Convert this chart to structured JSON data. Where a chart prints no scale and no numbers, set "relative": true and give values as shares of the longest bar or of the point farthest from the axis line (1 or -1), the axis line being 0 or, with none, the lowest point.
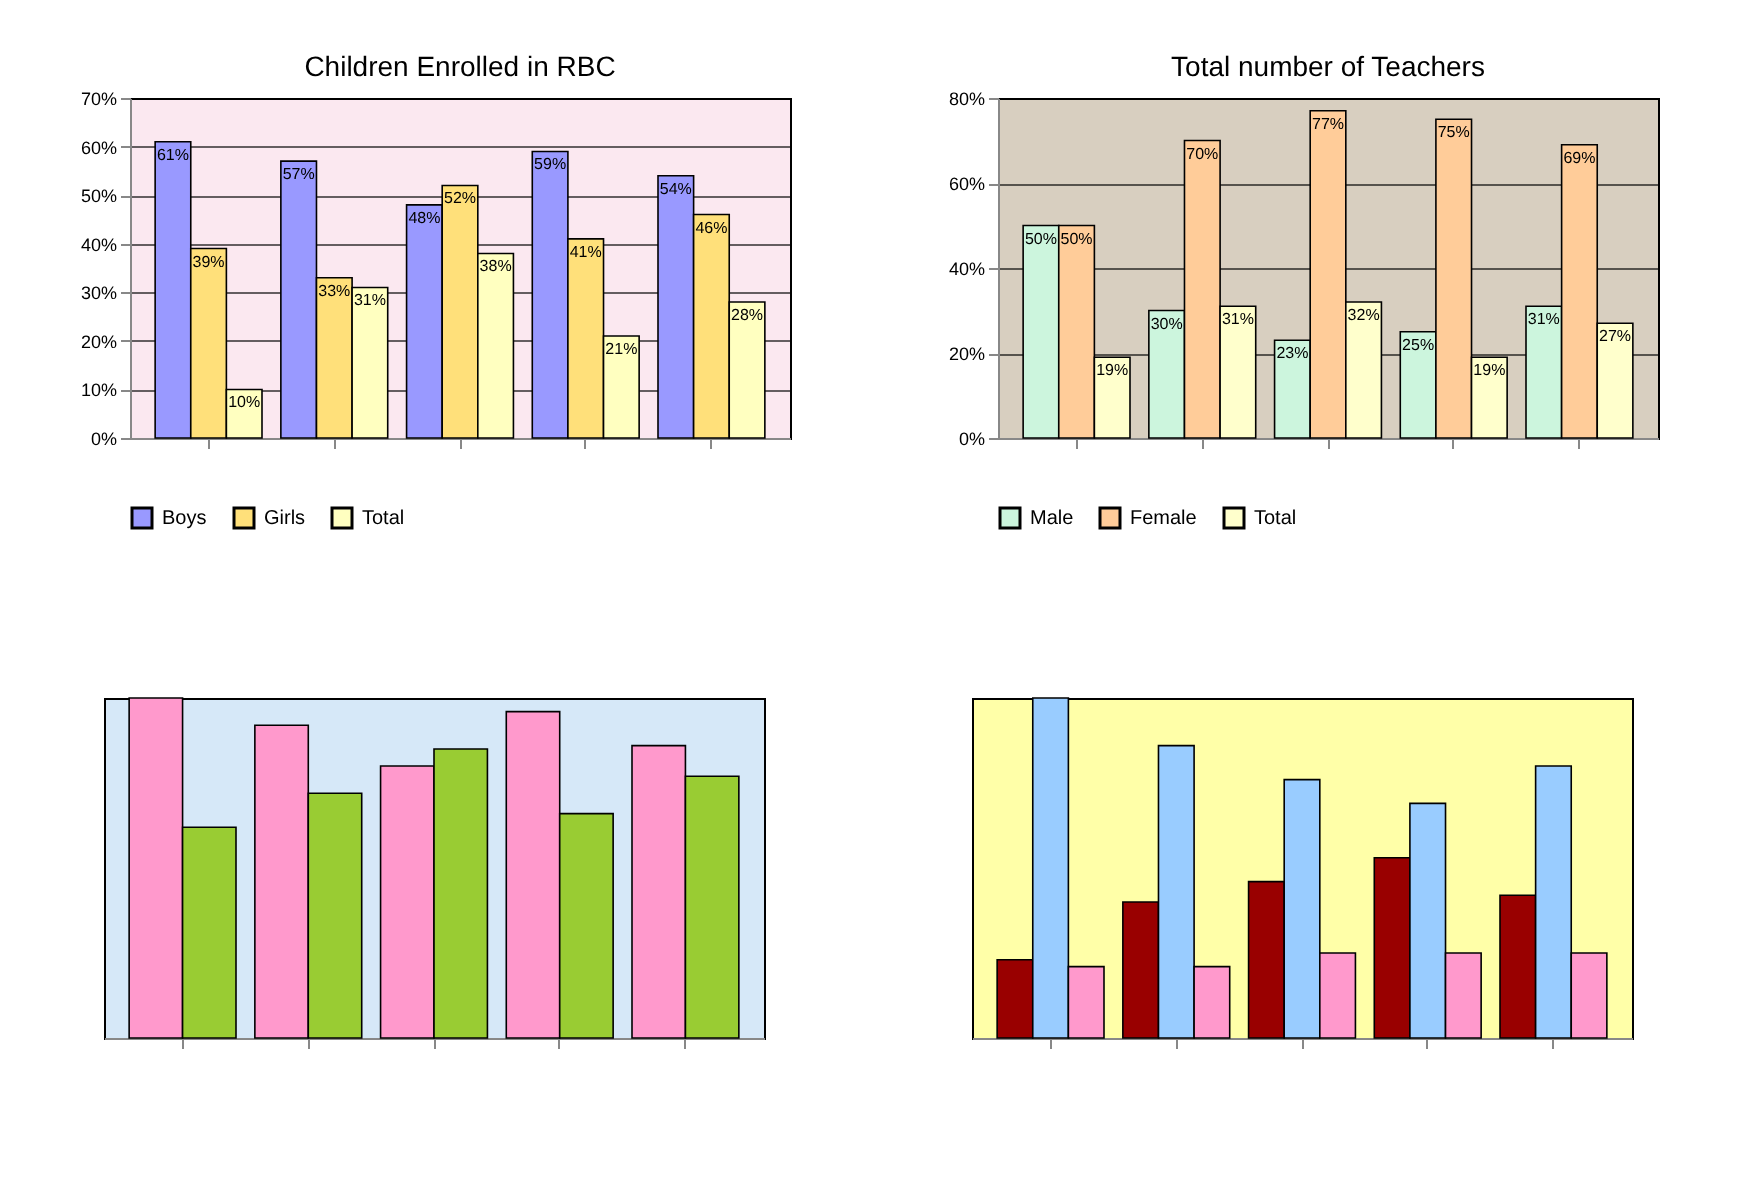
{
  "chart_data": [
    {
      "type": "bar",
      "title": "Children Enrolled in RBC",
      "categories": [
        null,
        null,
        null,
        null,
        null
      ],
      "series": [
        {
          "name": "Boys",
          "color": "#9999ff",
          "values": [
            61,
            57,
            48,
            59,
            54
          ],
          "value_labels": [
            "61%",
            "57%",
            "48%",
            "59%",
            "54%"
          ]
        },
        {
          "name": "Girls",
          "color": "#ffe07a",
          "values": [
            39,
            33,
            52,
            41,
            46
          ],
          "value_labels": [
            "39%",
            "33%",
            "52%",
            "41%",
            "46%"
          ]
        },
        {
          "name": "Total",
          "color": "#ffffc0",
          "values": [
            10,
            31,
            38,
            21,
            28
          ],
          "value_labels": [
            "10%",
            "31%",
            "38%",
            "21%",
            "28%"
          ]
        }
      ],
      "ylim": [
        0,
        70
      ],
      "yticks": [
        {
          "value": 0,
          "label": "0%"
        },
        {
          "value": 10,
          "label": "10%"
        },
        {
          "value": 20,
          "label": "20%"
        },
        {
          "value": 30,
          "label": "30%"
        },
        {
          "value": 40,
          "label": "40%"
        },
        {
          "value": 50,
          "label": "50%"
        },
        {
          "value": 60,
          "label": "60%"
        },
        {
          "value": 70,
          "label": "70%"
        }
      ],
      "grid": "y",
      "legend": "bottom"
    },
    {
      "type": "bar",
      "title": "Total number of Teachers",
      "categories": [
        null,
        null,
        null,
        null,
        null
      ],
      "series": [
        {
          "name": "Male",
          "color": "#ccf5dd",
          "values": [
            50,
            30,
            23,
            25,
            31
          ],
          "value_labels": [
            "50%",
            "30%",
            "23%",
            "25%",
            "31%"
          ]
        },
        {
          "name": "Female",
          "color": "#ffcc99",
          "values": [
            50,
            70,
            77,
            75,
            69
          ],
          "value_labels": [
            "50%",
            "70%",
            "77%",
            "75%",
            "69%"
          ]
        },
        {
          "name": "Total",
          "color": "#ffffcc",
          "values": [
            19,
            31,
            32,
            19,
            27
          ],
          "value_labels": [
            "19%",
            "31%",
            "32%",
            "19%",
            "27%"
          ]
        }
      ],
      "ylim": [
        0,
        80
      ],
      "yticks": [
        {
          "value": 0,
          "label": "0%"
        },
        {
          "value": 20,
          "label": "20%"
        },
        {
          "value": 40,
          "label": "40%"
        },
        {
          "value": 60,
          "label": "60%"
        },
        {
          "value": 80,
          "label": "80%"
        }
      ],
      "grid": "y",
      "legend": "bottom"
    },
    {
      "type": "bar",
      "relative": true,
      "categories": [
        null,
        null,
        null,
        null,
        null
      ],
      "series": [
        {
          "color": "#ff99cc",
          "values": [
            1,
            0.92,
            0.8,
            0.96,
            0.86
          ]
        },
        {
          "color": "#99cc33",
          "values": [
            0.62,
            0.72,
            0.85,
            0.66,
            0.77
          ]
        }
      ]
    },
    {
      "type": "bar",
      "relative": true,
      "categories": [
        null,
        null,
        null,
        null,
        null
      ],
      "series": [
        {
          "color": "#990000",
          "values": [
            0.23,
            0.4,
            0.46,
            0.53,
            0.42
          ]
        },
        {
          "color": "#99ccff",
          "values": [
            1,
            0.86,
            0.76,
            0.69,
            0.8
          ]
        },
        {
          "color": "#ff99cc",
          "values": [
            0.21,
            0.21,
            0.25,
            0.25,
            0.25
          ]
        }
      ]
    }
  ]
}
